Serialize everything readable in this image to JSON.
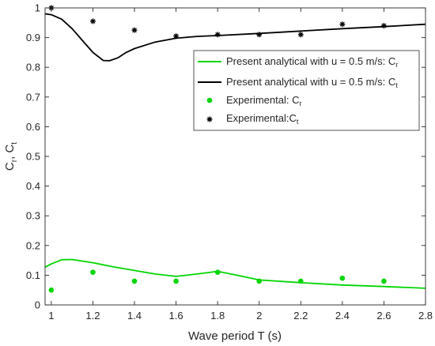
{
  "chart_data": {
    "type": "line",
    "title": "",
    "xlabel": "Wave period T (s)",
    "ylabel": {
      "base_c": "C",
      "sub_r": "r",
      "sep": ", ",
      "base_c2": "C",
      "sub_t": "t"
    },
    "xlim": [
      0.97,
      2.8
    ],
    "ylim": [
      0,
      1
    ],
    "xticks": [
      "1",
      "1.2",
      "1.4",
      "1.6",
      "1.8",
      "2",
      "2.2",
      "2.4",
      "2.6",
      "2.8"
    ],
    "yticks": [
      "0",
      "0.1",
      "0.2",
      "0.3",
      "0.4",
      "0.5",
      "0.6",
      "0.7",
      "0.8",
      "0.9",
      "1"
    ],
    "grid": false,
    "legend_placement": "top-right",
    "series": [
      {
        "name": "Present analytical with  u = 0.5 m/s: C",
        "name_sub": "r",
        "kind": "line",
        "color": "#00d600",
        "x": [
          0.97,
          1.0,
          1.05,
          1.1,
          1.2,
          1.3,
          1.4,
          1.5,
          1.6,
          1.7,
          1.8,
          1.9,
          2.0,
          2.2,
          2.4,
          2.6,
          2.8
        ],
        "y": [
          0.127,
          0.138,
          0.152,
          0.153,
          0.142,
          0.128,
          0.116,
          0.104,
          0.096,
          0.104,
          0.113,
          0.099,
          0.084,
          0.075,
          0.067,
          0.062,
          0.056
        ]
      },
      {
        "name": "Present analytical with  u = 0.5 m/s: C",
        "name_sub": "t",
        "kind": "line",
        "color": "#000000",
        "x": [
          0.97,
          1.0,
          1.05,
          1.1,
          1.15,
          1.2,
          1.25,
          1.28,
          1.32,
          1.36,
          1.4,
          1.5,
          1.6,
          1.7,
          1.8,
          2.0,
          2.2,
          2.4,
          2.6,
          2.8
        ],
        "y": [
          0.98,
          0.977,
          0.962,
          0.93,
          0.89,
          0.85,
          0.823,
          0.822,
          0.832,
          0.85,
          0.863,
          0.885,
          0.898,
          0.904,
          0.907,
          0.914,
          0.922,
          0.93,
          0.937,
          0.945
        ]
      },
      {
        "name": "Experimental: C",
        "name_sub": "r",
        "kind": "scatter",
        "marker": "dot",
        "color": "#00d600",
        "x": [
          1.0,
          1.2,
          1.4,
          1.6,
          1.8,
          2.0,
          2.2,
          2.4,
          2.6
        ],
        "y": [
          0.05,
          0.11,
          0.08,
          0.08,
          0.11,
          0.08,
          0.08,
          0.09,
          0.08
        ]
      },
      {
        "name": "Experimental:C",
        "name_sub": "t",
        "kind": "scatter",
        "marker": "asterisk",
        "color": "#000000",
        "x": [
          1.0,
          1.2,
          1.4,
          1.6,
          1.8,
          2.0,
          2.2,
          2.4,
          2.6
        ],
        "y": [
          1.0,
          0.955,
          0.925,
          0.905,
          0.91,
          0.91,
          0.91,
          0.945,
          0.94
        ]
      }
    ]
  }
}
